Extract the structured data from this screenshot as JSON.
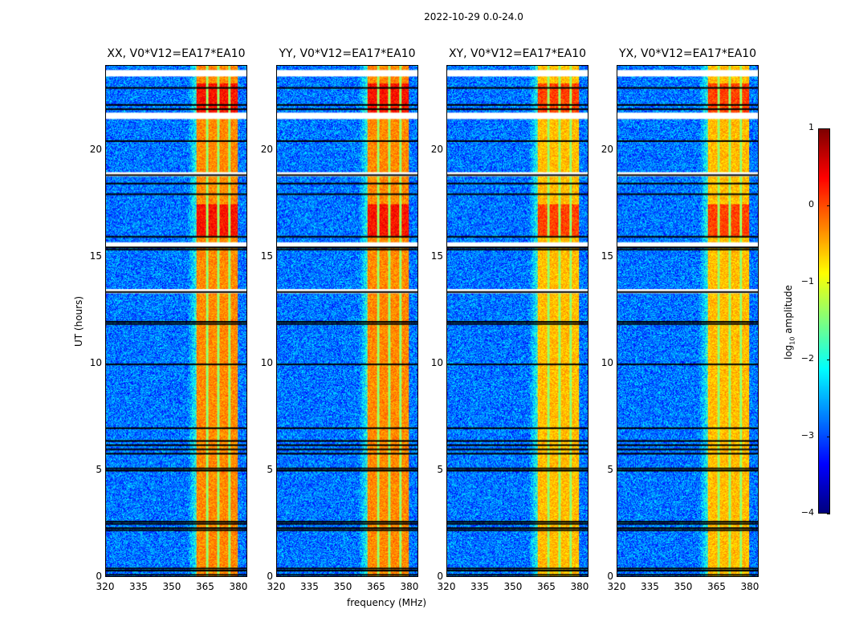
{
  "suptitle": "2022-10-29 0.0-24.0",
  "chart_data": {
    "type": "heatmap",
    "title": "2022-10-29 0.0-24.0",
    "xlabel": "frequency (MHz)",
    "ylabel": "UT (hours)",
    "xlim": [
      320,
      384
    ],
    "ylim": [
      0,
      24
    ],
    "xticks": [
      320,
      335,
      350,
      365,
      380
    ],
    "yticks": [
      0,
      5,
      10,
      15,
      20
    ],
    "panels": [
      {
        "title": "XX, V0*V12=EA17*EA10",
        "polarization": "XX"
      },
      {
        "title": "YY, V0*V12=EA17*EA10",
        "polarization": "YY"
      },
      {
        "title": "XY, V0*V12=EA17*EA10",
        "polarization": "XY"
      },
      {
        "title": "YX, V0*V12=EA17*EA10",
        "polarization": "YX"
      }
    ],
    "colorbar": {
      "label": "log10 amplitude",
      "label_main": "log",
      "label_sub": "10",
      "label_rest": " amplitude",
      "range": [
        -4,
        1
      ],
      "ticks": [
        "1",
        "0",
        "−1",
        "−2",
        "−3",
        "−4"
      ],
      "tick_values": [
        1,
        0,
        -1,
        -2,
        -3,
        -4
      ],
      "colormap": "jet"
    },
    "signal_band_mhz": [
      361,
      380
    ],
    "signal_subband_gaps_mhz": [
      366,
      371,
      376
    ],
    "background_log_amplitude": -2.8,
    "signal_log_amplitude": -0.3,
    "strong_signal_hours": [
      [
        16,
        17.5
      ],
      [
        21.8,
        23.2
      ]
    ],
    "flagged_rows_hours": [
      0.1,
      0.3,
      0.4,
      2.2,
      2.3,
      2.5,
      2.6,
      5.0,
      5.1,
      5.8,
      6.0,
      6.2,
      6.4,
      7.0,
      10.0,
      11.9,
      12.0,
      13.4,
      15.4,
      15.5,
      16.0,
      18.0,
      18.5,
      18.9,
      20.5,
      22.0,
      22.2,
      23.0
    ],
    "blank_rows_hours": [
      [
        23.5,
        23.8
      ],
      [
        18.8,
        19.0
      ],
      [
        15.5,
        15.7
      ],
      [
        13.3,
        13.5
      ],
      [
        21.5,
        21.8
      ]
    ]
  }
}
